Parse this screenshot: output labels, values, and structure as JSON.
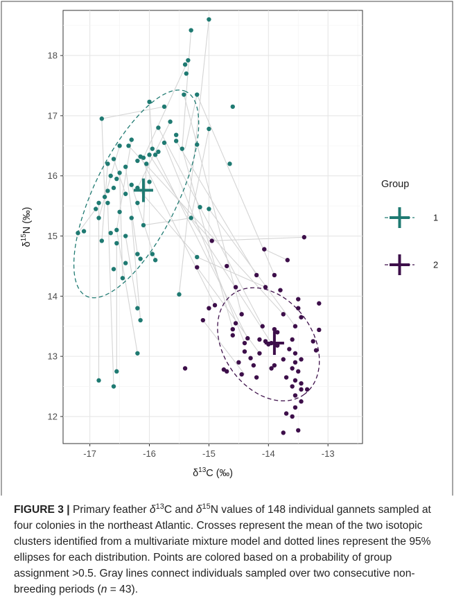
{
  "chart_data": {
    "type": "scatter",
    "xlabel": {
      "main": "δ",
      "sup": "13",
      "rest": "C (‰)"
    },
    "ylabel": {
      "main": "δ",
      "sup": "15",
      "rest": "N (‰)"
    },
    "xlim": [
      -17.45,
      -12.42
    ],
    "ylim": [
      11.55,
      18.75
    ],
    "xticks": [
      -17,
      -16,
      -15,
      -14,
      -13
    ],
    "yticks": [
      12,
      13,
      14,
      15,
      16,
      17,
      18
    ],
    "xtick_labels": [
      "-17",
      "-16",
      "-15",
      "-14",
      "-13"
    ],
    "ytick_labels": [
      "12",
      "13",
      "14",
      "15",
      "16",
      "17",
      "18"
    ],
    "grid": true,
    "legend": {
      "title": "Group",
      "position": "right",
      "labels": [
        "1",
        "2"
      ]
    },
    "colors": {
      "group1": "#1f7a72",
      "group2": "#3d0f4a",
      "grid_major": "#e6e6e6",
      "grid_minor": "#f3f3f3",
      "links": "#d4d4d4",
      "border": "#4a4a4a"
    },
    "series": [
      {
        "name": "1",
        "color": "#1f7a72",
        "mean": [
          -16.1,
          15.76
        ],
        "ellipse": {
          "center": [
            -16.22,
            15.7
          ],
          "semi_major": 3.05,
          "semi_minor": 1.12,
          "angle_deg": 64
        },
        "points": [
          [
            -15.0,
            18.6
          ],
          [
            -15.3,
            18.42
          ],
          [
            -15.35,
            17.92
          ],
          [
            -15.4,
            17.85
          ],
          [
            -15.38,
            17.7
          ],
          [
            -15.2,
            17.35
          ],
          [
            -15.42,
            17.35
          ],
          [
            -16.0,
            17.23
          ],
          [
            -14.6,
            17.15
          ],
          [
            -15.75,
            17.15
          ],
          [
            -16.8,
            16.95
          ],
          [
            -15.65,
            16.9
          ],
          [
            -15.0,
            16.78
          ],
          [
            -15.85,
            16.8
          ],
          [
            -15.55,
            16.68
          ],
          [
            -15.55,
            16.58
          ],
          [
            -16.3,
            16.6
          ],
          [
            -15.75,
            16.55
          ],
          [
            -15.2,
            16.52
          ],
          [
            -16.35,
            16.5
          ],
          [
            -16.5,
            16.5
          ],
          [
            -15.45,
            16.45
          ],
          [
            -15.95,
            16.45
          ],
          [
            -15.85,
            16.4
          ],
          [
            -16.0,
            16.35
          ],
          [
            -15.9,
            16.35
          ],
          [
            -16.15,
            16.32
          ],
          [
            -16.2,
            16.25
          ],
          [
            -16.6,
            16.28
          ],
          [
            -16.1,
            16.3
          ],
          [
            -16.05,
            16.2
          ],
          [
            -14.65,
            16.2
          ],
          [
            -16.4,
            16.15
          ],
          [
            -16.7,
            16.2
          ],
          [
            -16.5,
            16.05
          ],
          [
            -16.65,
            16.0
          ],
          [
            -16.55,
            15.95
          ],
          [
            -16.3,
            15.85
          ],
          [
            -16.6,
            15.8
          ],
          [
            -16.7,
            15.75
          ],
          [
            -16.2,
            15.8
          ],
          [
            -16.4,
            15.7
          ],
          [
            -16.75,
            15.65
          ],
          [
            -16.7,
            15.55
          ],
          [
            -16.85,
            15.55
          ],
          [
            -16.9,
            15.45
          ],
          [
            -16.5,
            15.4
          ],
          [
            -16.3,
            15.3
          ],
          [
            -16.85,
            15.3
          ],
          [
            -16.1,
            15.18
          ],
          [
            -16.55,
            15.1
          ],
          [
            -16.65,
            15.05
          ],
          [
            -16.4,
            15.0
          ],
          [
            -16.8,
            14.92
          ],
          [
            -16.55,
            14.88
          ],
          [
            -16.2,
            14.7
          ],
          [
            -15.95,
            14.7
          ],
          [
            -15.9,
            14.6
          ],
          [
            -16.15,
            14.62
          ],
          [
            -16.4,
            14.55
          ],
          [
            -16.45,
            14.3
          ],
          [
            -15.0,
            15.45
          ],
          [
            -15.3,
            15.3
          ],
          [
            -15.2,
            14.65
          ],
          [
            -15.15,
            15.48
          ],
          [
            -15.5,
            14.03
          ],
          [
            -17.1,
            15.08
          ],
          [
            -17.2,
            15.05
          ],
          [
            -16.2,
            13.8
          ],
          [
            -16.15,
            13.6
          ],
          [
            -16.2,
            13.05
          ],
          [
            -16.55,
            12.75
          ],
          [
            -16.85,
            12.6
          ],
          [
            -16.6,
            12.5
          ],
          [
            -16.0,
            15.9
          ],
          [
            -16.6,
            14.45
          ],
          [
            -16.2,
            15.55
          ]
        ]
      },
      {
        "name": "2",
        "color": "#3d0f4a",
        "mean": [
          -13.9,
          13.22
        ],
        "ellipse": {
          "center": [
            -14.0,
            13.2
          ],
          "semi_major": 1.65,
          "semi_minor": 1.2,
          "angle_deg": -55
        },
        "points": [
          [
            -13.4,
            14.98
          ],
          [
            -14.95,
            14.92
          ],
          [
            -14.07,
            14.78
          ],
          [
            -13.68,
            14.6
          ],
          [
            -14.7,
            14.5
          ],
          [
            -15.2,
            14.48
          ],
          [
            -14.2,
            14.35
          ],
          [
            -13.9,
            14.35
          ],
          [
            -14.55,
            14.15
          ],
          [
            -14.05,
            14.15
          ],
          [
            -13.8,
            14.1
          ],
          [
            -13.5,
            13.95
          ],
          [
            -13.5,
            13.8
          ],
          [
            -13.15,
            13.88
          ],
          [
            -14.9,
            13.85
          ],
          [
            -15.0,
            13.8
          ],
          [
            -14.45,
            13.7
          ],
          [
            -13.75,
            13.7
          ],
          [
            -13.45,
            13.65
          ],
          [
            -15.1,
            13.6
          ],
          [
            -14.1,
            13.5
          ],
          [
            -13.55,
            13.5
          ],
          [
            -13.9,
            13.45
          ],
          [
            -14.6,
            13.45
          ],
          [
            -13.15,
            13.44
          ],
          [
            -14.6,
            13.35
          ],
          [
            -14.35,
            13.3
          ],
          [
            -14.15,
            13.28
          ],
          [
            -14.05,
            13.25
          ],
          [
            -13.95,
            13.22
          ],
          [
            -13.6,
            13.28
          ],
          [
            -13.25,
            13.25
          ],
          [
            -14.4,
            13.22
          ],
          [
            -14.0,
            13.2
          ],
          [
            -13.85,
            13.18
          ],
          [
            -13.65,
            13.12
          ],
          [
            -13.55,
            13.05
          ],
          [
            -13.2,
            13.1
          ],
          [
            -14.4,
            13.08
          ],
          [
            -14.15,
            13.05
          ],
          [
            -14.3,
            12.97
          ],
          [
            -13.75,
            12.95
          ],
          [
            -13.45,
            12.95
          ],
          [
            -14.5,
            12.9
          ],
          [
            -13.9,
            12.85
          ],
          [
            -14.25,
            12.85
          ],
          [
            -13.6,
            12.8
          ],
          [
            -13.95,
            12.8
          ],
          [
            -13.5,
            12.75
          ],
          [
            -14.45,
            12.7
          ],
          [
            -14.2,
            12.65
          ],
          [
            -13.7,
            12.65
          ],
          [
            -13.55,
            12.6
          ],
          [
            -13.45,
            12.55
          ],
          [
            -13.6,
            12.5
          ],
          [
            -13.45,
            12.45
          ],
          [
            -13.35,
            12.45
          ],
          [
            -13.55,
            12.35
          ],
          [
            -13.45,
            12.25
          ],
          [
            -13.55,
            12.15
          ],
          [
            -13.7,
            12.05
          ],
          [
            -13.6,
            12.0
          ],
          [
            -13.5,
            11.77
          ],
          [
            -13.75,
            11.73
          ],
          [
            -14.7,
            12.75
          ],
          [
            -14.75,
            12.78
          ],
          [
            -15.4,
            12.8
          ],
          [
            -14.55,
            13.55
          ],
          [
            -13.85,
            13.4
          ],
          [
            -13.55,
            12.9
          ]
        ]
      }
    ],
    "links": [
      [
        [
          -15.0,
          18.6
        ],
        [
          -15.5,
          14.03
        ]
      ],
      [
        [
          -15.3,
          18.42
        ],
        [
          -15.45,
          16.45
        ]
      ],
      [
        [
          -16.8,
          16.95
        ],
        [
          -15.75,
          17.15
        ]
      ],
      [
        [
          -16.8,
          16.95
        ],
        [
          -16.75,
          15.65
        ]
      ],
      [
        [
          -15.2,
          17.35
        ],
        [
          -15.4,
          16.45
        ]
      ],
      [
        [
          -16.0,
          17.23
        ],
        [
          -15.95,
          16.45
        ]
      ],
      [
        [
          -15.35,
          17.92
        ],
        [
          -16.1,
          16.3
        ]
      ],
      [
        [
          -15.0,
          16.78
        ],
        [
          -15.3,
          15.3
        ]
      ],
      [
        [
          -15.65,
          16.9
        ],
        [
          -16.2,
          15.8
        ]
      ],
      [
        [
          -16.3,
          16.6
        ],
        [
          -16.55,
          15.1
        ]
      ],
      [
        [
          -16.5,
          16.5
        ],
        [
          -16.85,
          15.3
        ]
      ],
      [
        [
          -16.7,
          16.2
        ],
        [
          -16.8,
          14.92
        ]
      ],
      [
        [
          -16.6,
          16.28
        ],
        [
          -16.4,
          15.7
        ]
      ],
      [
        [
          -16.4,
          16.15
        ],
        [
          -16.2,
          14.7
        ]
      ],
      [
        [
          -16.5,
          16.05
        ],
        [
          -16.45,
          14.3
        ]
      ],
      [
        [
          -16.05,
          16.2
        ],
        [
          -16.1,
          15.18
        ]
      ],
      [
        [
          -16.3,
          15.85
        ],
        [
          -15.9,
          14.6
        ]
      ],
      [
        [
          -16.7,
          15.55
        ],
        [
          -16.6,
          12.5
        ]
      ],
      [
        [
          -16.85,
          15.55
        ],
        [
          -16.85,
          12.6
        ]
      ],
      [
        [
          -16.9,
          15.45
        ],
        [
          -17.2,
          15.05
        ]
      ],
      [
        [
          -16.3,
          15.3
        ],
        [
          -16.15,
          13.6
        ]
      ],
      [
        [
          -16.55,
          15.1
        ],
        [
          -16.2,
          13.05
        ]
      ],
      [
        [
          -16.4,
          15.0
        ],
        [
          -16.2,
          13.8
        ]
      ],
      [
        [
          -16.55,
          14.88
        ],
        [
          -16.55,
          12.75
        ]
      ],
      [
        [
          -16.2,
          15.8
        ],
        [
          -15.2,
          14.65
        ]
      ],
      [
        [
          -16.1,
          15.18
        ],
        [
          -15.3,
          15.3
        ]
      ],
      [
        [
          -15.2,
          14.65
        ],
        [
          -14.05,
          14.15
        ]
      ],
      [
        [
          -15.3,
          15.3
        ],
        [
          -14.95,
          14.92
        ]
      ],
      [
        [
          -15.45,
          16.45
        ],
        [
          -14.6,
          13.45
        ]
      ],
      [
        [
          -15.55,
          16.58
        ],
        [
          -14.2,
          14.35
        ]
      ],
      [
        [
          -15.2,
          17.35
        ],
        [
          -13.9,
          14.35
        ]
      ],
      [
        [
          -15.42,
          17.35
        ],
        [
          -14.45,
          13.7
        ]
      ],
      [
        [
          -15.75,
          16.55
        ],
        [
          -14.4,
          13.22
        ]
      ],
      [
        [
          -16.35,
          16.5
        ],
        [
          -13.75,
          13.7
        ]
      ],
      [
        [
          -15.85,
          16.8
        ],
        [
          -14.1,
          13.5
        ]
      ],
      [
        [
          -15.0,
          15.45
        ],
        [
          -13.55,
          13.5
        ]
      ],
      [
        [
          -15.9,
          16.35
        ],
        [
          -14.35,
          13.3
        ]
      ],
      [
        [
          -16.15,
          16.32
        ],
        [
          -14.9,
          13.85
        ]
      ],
      [
        [
          -16.0,
          16.35
        ],
        [
          -13.95,
          13.22
        ]
      ],
      [
        [
          -14.95,
          14.92
        ],
        [
          -13.4,
          14.98
        ]
      ],
      [
        [
          -15.2,
          14.48
        ],
        [
          -14.15,
          13.05
        ]
      ],
      [
        [
          -15.1,
          13.6
        ],
        [
          -14.4,
          12.7
        ]
      ],
      [
        [
          -14.07,
          14.78
        ],
        [
          -13.68,
          14.6
        ]
      ]
    ]
  },
  "caption": {
    "label": "FIGURE 3 |",
    "text": "Primary feather δ13C and δ15N values of 148 individual gannets sampled at four colonies in the northeast Atlantic. Crosses represent the mean of the two isotopic clusters identified from a multivariate mixture model and dotted lines represent the 95% ellipses for each distribution. Points are colored based on a probability of group assignment >0.5. Gray lines connect individuals sampled over two consecutive non-breeding periods (n = 43).",
    "html_parts": [
      {
        "t": "Primary feather "
      },
      {
        "i": "δ"
      },
      {
        "sup": "13"
      },
      {
        "t": "C and "
      },
      {
        "i": "δ"
      },
      {
        "sup": "15"
      },
      {
        "t": "N values of 148 individual gannets sampled at four colonies in the northeast Atlantic. Crosses represent the mean of the two isotopic clusters identified from a multivariate mixture model and dotted lines represent the 95% ellipses for each distribution. Points are colored based on a probability of group assignment >0.5. Gray lines connect individuals sampled over two consecutive non-breeding periods ("
      },
      {
        "i": "n"
      },
      {
        "t": " = 43)."
      }
    ]
  }
}
